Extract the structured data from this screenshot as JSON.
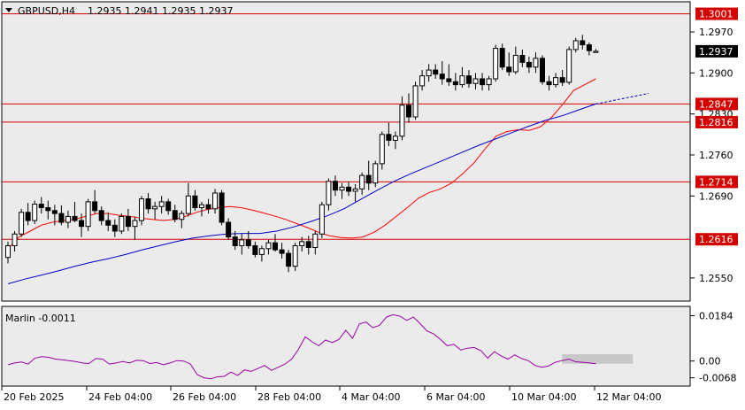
{
  "header": {
    "symbol": "GBPUSD,H4",
    "ohlc": "1.2935 1.2941 1.2935 1.2937"
  },
  "colors": {
    "background": "#ffffff",
    "plot_bg": "#ebebeb",
    "grid": "#ffffff",
    "axis": "#000000",
    "candle": "#000000",
    "fast_ma": "#ff0000",
    "slow_ma": "#0000cc",
    "level_line": "#d40000",
    "level_label_bg": "#d40000",
    "price_label_bg": "#000000",
    "marlin": "#9b00a6",
    "marlin_box": "#c8c8c8"
  },
  "chart_data": [
    {
      "type": "candlestick",
      "title": "GBPUSD,H4",
      "ohlc_last": [
        1.2935,
        1.2941,
        1.2935,
        1.2937
      ],
      "x_labels": [
        "20 Feb 2025",
        "24 Feb 04:00",
        "26 Feb 04:00",
        "28 Feb 04:00",
        "4 Mar 04:00",
        "6 Mar 04:00",
        "10 Mar 04:00",
        "12 Mar 04:00"
      ],
      "y_ticks": [
        1.255,
        1.269,
        1.276,
        1.283,
        1.29,
        1.297
      ],
      "ylim": [
        1.2512,
        1.302
      ],
      "grid": true,
      "current_price": 1.2937,
      "levels": [
        1.3001,
        1.2847,
        1.2816,
        1.2714,
        1.2616
      ],
      "candles": [
        [
          1.2585,
          1.2612,
          1.2575,
          1.2605
        ],
        [
          1.2605,
          1.263,
          1.2595,
          1.2625
        ],
        [
          1.2625,
          1.2668,
          1.262,
          1.2662
        ],
        [
          1.2662,
          1.2678,
          1.264,
          1.2648
        ],
        [
          1.2648,
          1.2682,
          1.2642,
          1.2676
        ],
        [
          1.2676,
          1.2688,
          1.266,
          1.267
        ],
        [
          1.267,
          1.2682,
          1.265,
          1.2665
        ],
        [
          1.2665,
          1.2675,
          1.264,
          1.266
        ],
        [
          1.266,
          1.2674,
          1.264,
          1.2645
        ],
        [
          1.2645,
          1.2665,
          1.2635,
          1.2655
        ],
        [
          1.2655,
          1.268,
          1.2645,
          1.2648
        ],
        [
          1.2648,
          1.266,
          1.262,
          1.2638
        ],
        [
          1.2638,
          1.2685,
          1.263,
          1.268
        ],
        [
          1.268,
          1.27,
          1.266,
          1.2665
        ],
        [
          1.2665,
          1.2672,
          1.264,
          1.2648
        ],
        [
          1.2648,
          1.2662,
          1.263,
          1.264
        ],
        [
          1.264,
          1.265,
          1.262,
          1.263
        ],
        [
          1.263,
          1.266,
          1.2625,
          1.2655
        ],
        [
          1.2655,
          1.2668,
          1.263,
          1.2638
        ],
        [
          1.2638,
          1.2655,
          1.2615,
          1.2648
        ],
        [
          1.2648,
          1.269,
          1.264,
          1.2685
        ],
        [
          1.2685,
          1.2695,
          1.266,
          1.2668
        ],
        [
          1.2668,
          1.268,
          1.265,
          1.2672
        ],
        [
          1.2672,
          1.269,
          1.266,
          1.268
        ],
        [
          1.268,
          1.2685,
          1.2658,
          1.2665
        ],
        [
          1.2665,
          1.2675,
          1.2645,
          1.265
        ],
        [
          1.265,
          1.2665,
          1.2635,
          1.266
        ],
        [
          1.266,
          1.2712,
          1.2655,
          1.269
        ],
        [
          1.269,
          1.27,
          1.2665,
          1.267
        ],
        [
          1.267,
          1.268,
          1.2655,
          1.2675
        ],
        [
          1.2675,
          1.2685,
          1.266,
          1.2668
        ],
        [
          1.2668,
          1.2702,
          1.266,
          1.2695
        ],
        [
          1.2695,
          1.27,
          1.264,
          1.2645
        ],
        [
          1.2645,
          1.2652,
          1.2615,
          1.262
        ],
        [
          1.262,
          1.263,
          1.2598,
          1.2605
        ],
        [
          1.2605,
          1.2625,
          1.259,
          1.2615
        ],
        [
          1.2615,
          1.263,
          1.26,
          1.2605
        ],
        [
          1.2605,
          1.2612,
          1.2585,
          1.259
        ],
        [
          1.259,
          1.2605,
          1.2578,
          1.26
        ],
        [
          1.26,
          1.2615,
          1.259,
          1.261
        ],
        [
          1.261,
          1.2625,
          1.2595,
          1.2598
        ],
        [
          1.2598,
          1.261,
          1.2583,
          1.2592
        ],
        [
          1.2592,
          1.2598,
          1.256,
          1.257
        ],
        [
          1.257,
          1.261,
          1.2562,
          1.2605
        ],
        [
          1.2605,
          1.262,
          1.2595,
          1.2612
        ],
        [
          1.2612,
          1.2622,
          1.259,
          1.2602
        ],
        [
          1.2602,
          1.263,
          1.259,
          1.2625
        ],
        [
          1.2625,
          1.268,
          1.2618,
          1.2675
        ],
        [
          1.2675,
          1.272,
          1.2665,
          1.2715
        ],
        [
          1.2715,
          1.2725,
          1.269,
          1.27
        ],
        [
          1.27,
          1.2712,
          1.2685,
          1.2705
        ],
        [
          1.2705,
          1.2715,
          1.269,
          1.2698
        ],
        [
          1.2698,
          1.271,
          1.268,
          1.2702
        ],
        [
          1.2702,
          1.273,
          1.2692,
          1.2725
        ],
        [
          1.2725,
          1.275,
          1.27,
          1.2712
        ],
        [
          1.2712,
          1.275,
          1.2705,
          1.2745
        ],
        [
          1.2745,
          1.28,
          1.2735,
          1.2795
        ],
        [
          1.2795,
          1.2815,
          1.2775,
          1.2785
        ],
        [
          1.2785,
          1.28,
          1.277,
          1.2792
        ],
        [
          1.2792,
          1.286,
          1.2785,
          1.2845
        ],
        [
          1.2845,
          1.2865,
          1.2815,
          1.2825
        ],
        [
          1.2825,
          1.2885,
          1.282,
          1.2878
        ],
        [
          1.2878,
          1.2905,
          1.287,
          1.2895
        ],
        [
          1.2895,
          1.2915,
          1.2885,
          1.2905
        ],
        [
          1.2905,
          1.2915,
          1.289,
          1.2898
        ],
        [
          1.2898,
          1.292,
          1.288,
          1.289
        ],
        [
          1.289,
          1.2915,
          1.2878,
          1.2885
        ],
        [
          1.2885,
          1.29,
          1.287,
          1.288
        ],
        [
          1.288,
          1.291,
          1.2875,
          1.2895
        ],
        [
          1.2895,
          1.2905,
          1.2875,
          1.2882
        ],
        [
          1.2882,
          1.29,
          1.2872,
          1.289
        ],
        [
          1.289,
          1.29,
          1.287,
          1.288
        ],
        [
          1.288,
          1.2895,
          1.287,
          1.289
        ],
        [
          1.289,
          1.2948,
          1.2885,
          1.2942
        ],
        [
          1.2942,
          1.295,
          1.2905,
          1.291
        ],
        [
          1.291,
          1.2935,
          1.2895,
          1.2902
        ],
        [
          1.2902,
          1.2945,
          1.2898,
          1.293
        ],
        [
          1.293,
          1.294,
          1.291,
          1.2918
        ],
        [
          1.2918,
          1.2928,
          1.29,
          1.291
        ],
        [
          1.291,
          1.2935,
          1.29,
          1.2925
        ],
        [
          1.2925,
          1.293,
          1.288,
          1.2885
        ],
        [
          1.2885,
          1.2895,
          1.287,
          1.288
        ],
        [
          1.288,
          1.29,
          1.2875,
          1.2892
        ],
        [
          1.2892,
          1.2905,
          1.2878,
          1.2884
        ],
        [
          1.2884,
          1.2945,
          1.288,
          1.294
        ],
        [
          1.294,
          1.296,
          1.2935,
          1.2955
        ],
        [
          1.2955,
          1.2965,
          1.294,
          1.2948
        ],
        [
          1.2948,
          1.2952,
          1.293,
          1.2938
        ],
        [
          1.2935,
          1.2941,
          1.2935,
          1.2937
        ]
      ],
      "fast_ma": [
        [
          1.26,
          1.262,
          1.263,
          1.264,
          1.2645,
          1.2648,
          1.265,
          1.2655,
          1.266,
          1.266,
          1.2657,
          1.2655,
          1.2652,
          1.265,
          1.2648,
          1.265,
          1.2655,
          1.2662,
          1.2667,
          1.267,
          1.2672,
          1.267,
          1.2666,
          1.2661,
          1.2656,
          1.265,
          1.2643,
          1.2636,
          1.2628,
          1.2622,
          1.2619,
          1.2618,
          1.262,
          1.2628,
          1.264,
          1.2655,
          1.267,
          1.2686,
          1.2696,
          1.2702,
          1.2712,
          1.2728,
          1.2746,
          1.277,
          1.2792,
          1.28,
          1.2803,
          1.2802,
          1.2808,
          1.2824,
          1.2846,
          1.287,
          1.288,
          1.289
        ]
      ],
      "slow_ma": [
        1.254,
        1.2548,
        1.2555,
        1.2562,
        1.257,
        1.2577,
        1.2583,
        1.259,
        1.2598,
        1.2605,
        1.2612,
        1.2618,
        1.2622,
        1.2625,
        1.2626,
        1.2626,
        1.263,
        1.2637,
        1.2646,
        1.2656,
        1.2668,
        1.2684,
        1.27,
        1.2715,
        1.2728,
        1.274,
        1.2752,
        1.2764,
        1.2776,
        1.2787,
        1.2798,
        1.2809,
        1.2819,
        1.2827,
        1.2837,
        1.2847
      ],
      "slow_ma_projection": [
        1.2847,
        1.2865
      ],
      "series": [
        {
          "name": "fast_ma"
        },
        {
          "name": "slow_ma"
        }
      ]
    },
    {
      "type": "line",
      "title": "Marlin -0.0011",
      "y_ticks": [
        0.0184,
        0.0,
        -0.0068
      ],
      "ylim": [
        -0.0098,
        0.0218
      ],
      "series": [
        {
          "name": "Marlin",
          "values": [
            -0.0015,
            -0.0008,
            -0.0004,
            -0.0012,
            0.0012,
            0.0018,
            0.0015,
            0.0008,
            0.0005,
            0.0002,
            -0.0002,
            -0.0008,
            -0.001,
            0.001,
            0.0008,
            -0.0012,
            -0.0008,
            -0.0002,
            -0.0008,
            0.0003,
            0.0002,
            -0.001,
            -0.0006,
            -0.0015,
            -0.0008,
            0.0002,
            0.0,
            -0.0012,
            -0.0055,
            -0.0068,
            -0.0072,
            -0.0064,
            -0.0062,
            -0.0045,
            -0.0058,
            -0.0036,
            -0.0042,
            -0.003,
            -0.0018,
            -0.0038,
            -0.0025,
            -0.0012,
            0.0008,
            0.0048,
            0.0098,
            0.0078,
            0.0062,
            0.0085,
            0.0075,
            0.0088,
            0.0125,
            0.0092,
            0.015,
            0.0158,
            0.0135,
            0.0145,
            0.0178,
            0.0188,
            0.0182,
            0.0165,
            0.0178,
            0.0152,
            0.0122,
            0.011,
            0.0088,
            0.0062,
            0.0068,
            0.0045,
            0.0052,
            0.0055,
            0.0042,
            0.0012,
            0.0038,
            0.002,
            0.0008,
            0.0025,
            0.001,
            0.0002,
            -0.0018,
            -0.0025,
            -0.002,
            -0.0005,
            0.0002,
            0.0008,
            -0.0003,
            -0.0005,
            -0.0008,
            -0.0011
          ]
        }
      ],
      "box_range": [
        -0.0011,
        0.0028
      ]
    }
  ]
}
